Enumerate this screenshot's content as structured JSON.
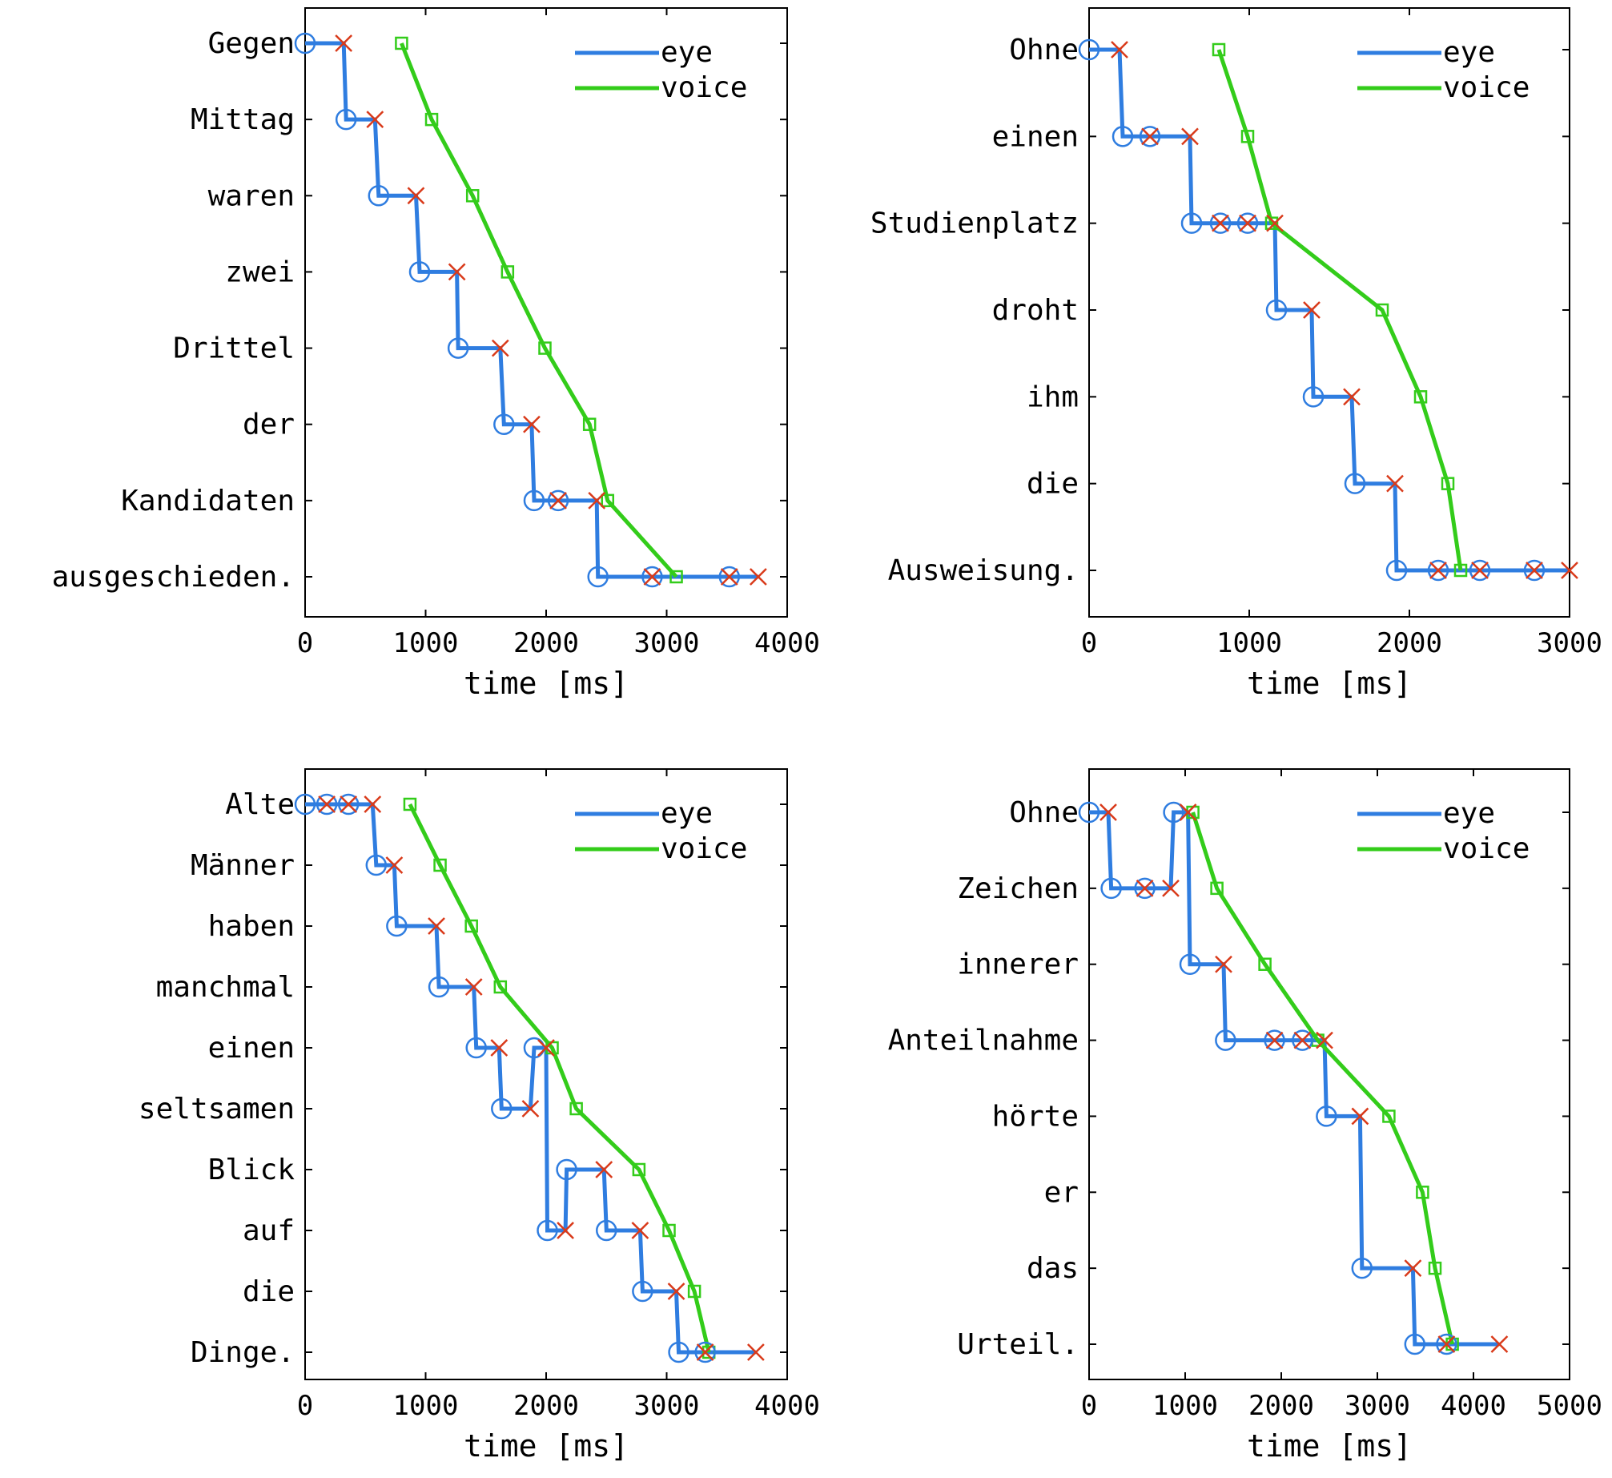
{
  "colors": {
    "eye": "#2f7de0",
    "voice": "#33cc1a",
    "offset_marker": "#d93a1a",
    "axis": "#000000"
  },
  "chart_data": [
    {
      "type": "line",
      "xlabel": "time [ms]",
      "xlim": [
        0,
        4000
      ],
      "xticks": [
        0,
        1000,
        2000,
        3000,
        4000
      ],
      "words": [
        "Gegen",
        "Mittag",
        "waren",
        "zwei",
        "Drittel",
        "der",
        "Kandidaten",
        "ausgeschieden."
      ],
      "legend": [
        "eye",
        "voice"
      ],
      "legend_position": "top-right",
      "series": [
        {
          "name": "eye",
          "points": [
            [
              0,
              1
            ],
            [
              320,
              1
            ],
            [
              340,
              2
            ],
            [
              580,
              2
            ],
            [
              610,
              3
            ],
            [
              920,
              3
            ],
            [
              950,
              4
            ],
            [
              1260,
              4
            ],
            [
              1270,
              5
            ],
            [
              1620,
              5
            ],
            [
              1650,
              6
            ],
            [
              1880,
              6
            ],
            [
              1900,
              7
            ],
            [
              2420,
              7
            ],
            [
              2430,
              8
            ],
            [
              3760,
              8
            ]
          ]
        },
        {
          "name": "voice",
          "points": [
            [
              800,
              1
            ],
            [
              1050,
              2
            ],
            [
              1390,
              3
            ],
            [
              1680,
              4
            ],
            [
              1990,
              5
            ],
            [
              2360,
              6
            ],
            [
              2510,
              7
            ],
            [
              3080,
              8
            ]
          ]
        }
      ],
      "fixation_onsets": [
        [
          0,
          1
        ],
        [
          340,
          2
        ],
        [
          610,
          3
        ],
        [
          950,
          4
        ],
        [
          1270,
          5
        ],
        [
          1650,
          6
        ],
        [
          1900,
          7
        ],
        [
          2100,
          7
        ],
        [
          2430,
          8
        ],
        [
          2880,
          8
        ],
        [
          3520,
          8
        ]
      ],
      "fixation_offsets": [
        [
          320,
          1
        ],
        [
          580,
          2
        ],
        [
          920,
          3
        ],
        [
          1260,
          4
        ],
        [
          1620,
          5
        ],
        [
          1880,
          6
        ],
        [
          2100,
          7
        ],
        [
          2420,
          7
        ],
        [
          2880,
          8
        ],
        [
          3520,
          8
        ],
        [
          3760,
          8
        ]
      ]
    },
    {
      "type": "line",
      "xlabel": "time [ms]",
      "xlim": [
        0,
        3000
      ],
      "xticks": [
        0,
        1000,
        2000,
        3000
      ],
      "words": [
        "Ohne",
        "einen",
        "Studienplatz",
        "droht",
        "ihm",
        "die",
        "Ausweisung."
      ],
      "legend": [
        "eye",
        "voice"
      ],
      "legend_position": "top-right",
      "series": [
        {
          "name": "eye",
          "points": [
            [
              0,
              1
            ],
            [
              190,
              1
            ],
            [
              210,
              2
            ],
            [
              630,
              2
            ],
            [
              640,
              3
            ],
            [
              1160,
              3
            ],
            [
              1170,
              4
            ],
            [
              1390,
              4
            ],
            [
              1400,
              5
            ],
            [
              1640,
              5
            ],
            [
              1660,
              6
            ],
            [
              1910,
              6
            ],
            [
              1920,
              7
            ],
            [
              3000,
              7
            ]
          ]
        },
        {
          "name": "voice",
          "points": [
            [
              810,
              1
            ],
            [
              990,
              2
            ],
            [
              1140,
              3
            ],
            [
              1830,
              4
            ],
            [
              2070,
              5
            ],
            [
              2240,
              6
            ],
            [
              2320,
              7
            ]
          ]
        }
      ],
      "fixation_onsets": [
        [
          0,
          1
        ],
        [
          210,
          2
        ],
        [
          380,
          2
        ],
        [
          640,
          3
        ],
        [
          820,
          3
        ],
        [
          990,
          3
        ],
        [
          1170,
          4
        ],
        [
          1400,
          5
        ],
        [
          1660,
          6
        ],
        [
          1920,
          7
        ],
        [
          2180,
          7
        ],
        [
          2440,
          7
        ],
        [
          2780,
          7
        ]
      ],
      "fixation_offsets": [
        [
          190,
          1
        ],
        [
          380,
          2
        ],
        [
          630,
          2
        ],
        [
          820,
          3
        ],
        [
          990,
          3
        ],
        [
          1160,
          3
        ],
        [
          1390,
          4
        ],
        [
          1640,
          5
        ],
        [
          1910,
          6
        ],
        [
          2180,
          7
        ],
        [
          2440,
          7
        ],
        [
          2780,
          7
        ],
        [
          3000,
          7
        ]
      ]
    },
    {
      "type": "line",
      "xlabel": "time [ms]",
      "xlim": [
        0,
        4000
      ],
      "xticks": [
        0,
        1000,
        2000,
        3000,
        4000
      ],
      "words": [
        "Alte",
        "Männer",
        "haben",
        "manchmal",
        "einen",
        "seltsamen",
        "Blick",
        "auf",
        "die",
        "Dinge."
      ],
      "legend": [
        "eye",
        "voice"
      ],
      "legend_position": "top-right",
      "series": [
        {
          "name": "eye",
          "points": [
            [
              0,
              1
            ],
            [
              560,
              1
            ],
            [
              590,
              2
            ],
            [
              740,
              2
            ],
            [
              760,
              3
            ],
            [
              1090,
              3
            ],
            [
              1110,
              4
            ],
            [
              1400,
              4
            ],
            [
              1420,
              5
            ],
            [
              1610,
              5
            ],
            [
              1630,
              6
            ],
            [
              1870,
              6
            ],
            [
              1900,
              5
            ],
            [
              2000,
              5
            ],
            [
              2010,
              8
            ],
            [
              2160,
              8
            ],
            [
              2170,
              7
            ],
            [
              2480,
              7
            ],
            [
              2500,
              8
            ],
            [
              2780,
              8
            ],
            [
              2800,
              9
            ],
            [
              3080,
              9
            ],
            [
              3100,
              10
            ],
            [
              3740,
              10
            ]
          ]
        },
        {
          "name": "voice",
          "points": [
            [
              870,
              1
            ],
            [
              1120,
              2
            ],
            [
              1380,
              3
            ],
            [
              1620,
              4
            ],
            [
              2050,
              5
            ],
            [
              2250,
              6
            ],
            [
              2770,
              7
            ],
            [
              3020,
              8
            ],
            [
              3230,
              9
            ],
            [
              3350,
              10
            ]
          ]
        }
      ],
      "fixation_onsets": [
        [
          0,
          1
        ],
        [
          180,
          1
        ],
        [
          360,
          1
        ],
        [
          590,
          2
        ],
        [
          760,
          3
        ],
        [
          1110,
          4
        ],
        [
          1420,
          5
        ],
        [
          1630,
          6
        ],
        [
          1900,
          5
        ],
        [
          2010,
          8
        ],
        [
          2170,
          7
        ],
        [
          2500,
          8
        ],
        [
          2800,
          9
        ],
        [
          3100,
          10
        ],
        [
          3320,
          10
        ]
      ],
      "fixation_offsets": [
        [
          180,
          1
        ],
        [
          360,
          1
        ],
        [
          560,
          1
        ],
        [
          740,
          2
        ],
        [
          1090,
          3
        ],
        [
          1400,
          4
        ],
        [
          1610,
          5
        ],
        [
          1870,
          6
        ],
        [
          2000,
          5
        ],
        [
          2160,
          8
        ],
        [
          2480,
          7
        ],
        [
          2780,
          8
        ],
        [
          3080,
          9
        ],
        [
          3320,
          10
        ],
        [
          3740,
          10
        ]
      ]
    },
    {
      "type": "line",
      "xlabel": "time [ms]",
      "xlim": [
        0,
        5000
      ],
      "xticks": [
        0,
        1000,
        2000,
        3000,
        4000,
        5000
      ],
      "words": [
        "Ohne",
        "Zeichen",
        "innerer",
        "Anteilnahme",
        "hörte",
        "er",
        "das",
        "Urteil."
      ],
      "legend": [
        "eye",
        "voice"
      ],
      "legend_position": "top-right",
      "series": [
        {
          "name": "eye",
          "points": [
            [
              0,
              1
            ],
            [
              200,
              1
            ],
            [
              230,
              2
            ],
            [
              850,
              2
            ],
            [
              880,
              1
            ],
            [
              1030,
              1
            ],
            [
              1050,
              3
            ],
            [
              1400,
              3
            ],
            [
              1420,
              4
            ],
            [
              2450,
              4
            ],
            [
              2470,
              5
            ],
            [
              2820,
              5
            ],
            [
              2840,
              7
            ],
            [
              3370,
              7
            ],
            [
              3390,
              8
            ],
            [
              4270,
              8
            ]
          ]
        },
        {
          "name": "voice",
          "points": [
            [
              1080,
              1
            ],
            [
              1330,
              2
            ],
            [
              1830,
              3
            ],
            [
              2380,
              4
            ],
            [
              3120,
              5
            ],
            [
              3470,
              6
            ],
            [
              3600,
              7
            ],
            [
              3780,
              8
            ]
          ]
        }
      ],
      "fixation_onsets": [
        [
          0,
          1
        ],
        [
          230,
          2
        ],
        [
          580,
          2
        ],
        [
          880,
          1
        ],
        [
          1050,
          3
        ],
        [
          1420,
          4
        ],
        [
          1930,
          4
        ],
        [
          2220,
          4
        ],
        [
          2470,
          5
        ],
        [
          2840,
          7
        ],
        [
          3390,
          8
        ],
        [
          3720,
          8
        ]
      ],
      "fixation_offsets": [
        [
          200,
          1
        ],
        [
          580,
          2
        ],
        [
          850,
          2
        ],
        [
          1030,
          1
        ],
        [
          1400,
          3
        ],
        [
          1930,
          4
        ],
        [
          2220,
          4
        ],
        [
          2450,
          4
        ],
        [
          2820,
          5
        ],
        [
          3370,
          7
        ],
        [
          3720,
          8
        ],
        [
          4270,
          8
        ]
      ]
    }
  ]
}
